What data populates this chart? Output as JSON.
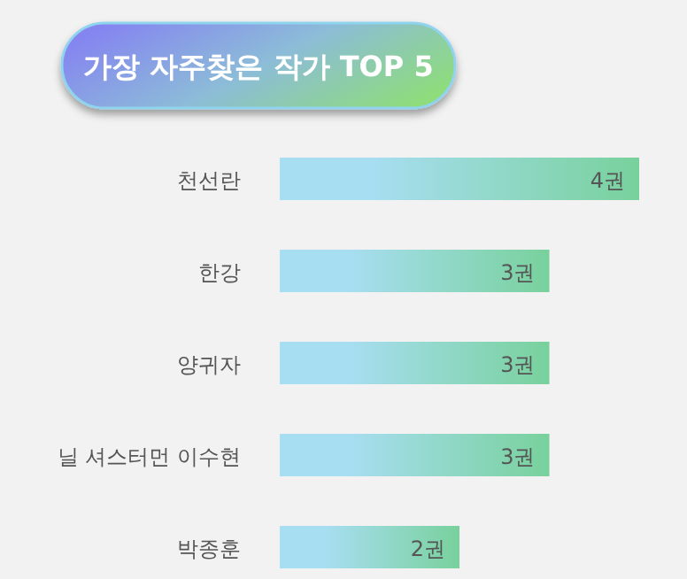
{
  "chart_data": {
    "type": "bar",
    "orientation": "horizontal",
    "title": "가장 자주찾은 작가 TOP 5",
    "categories": [
      "천선란",
      "한강",
      "양귀자",
      "닐 셔스터먼 이수현",
      "박종훈"
    ],
    "values": [
      4,
      3,
      3,
      3,
      2
    ],
    "value_labels": [
      "4권",
      "3권",
      "3권",
      "3권",
      "2권"
    ],
    "color": "#78d19c"
  }
}
